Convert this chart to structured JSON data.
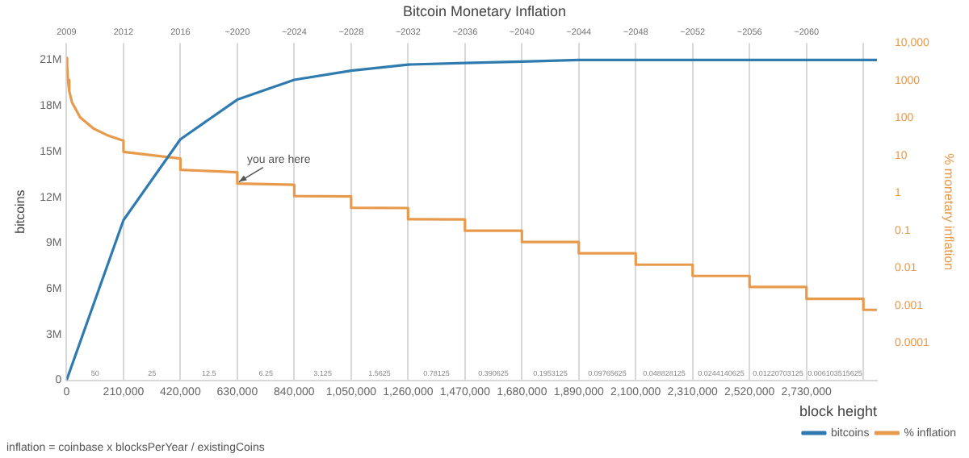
{
  "chart_data": {
    "type": "line",
    "title": "Bitcoin Monetary Inflation",
    "xlabel": "block height",
    "ylabel": "bitcoins",
    "y2label": "% monetary inflation",
    "xlim": [
      0,
      2990000
    ],
    "xticks": [
      0,
      {
        "value": 210000,
        "label": "210,000"
      },
      {
        "value": 420000,
        "label": "420,000"
      },
      {
        "value": 630000,
        "label": "630,000"
      },
      {
        "value": 840000,
        "label": "840,000"
      },
      {
        "value": 1050000,
        "label": "1,050,000"
      },
      {
        "value": 1260000,
        "label": "1,260,000"
      },
      {
        "value": 1470000,
        "label": "1,470,000"
      },
      {
        "value": 1680000,
        "label": "1,680,000"
      },
      {
        "value": 1890000,
        "label": "1,890,000"
      },
      {
        "value": 2100000,
        "label": "2,100,000"
      },
      {
        "value": 2310000,
        "label": "2,310,000"
      },
      {
        "value": 2520000,
        "label": "2,520,000"
      },
      {
        "value": 2730000,
        "label": "2,730,000"
      },
      {
        "value": 2940000,
        "label": null
      }
    ],
    "ylim": [
      0,
      22100000
    ],
    "yticks": [
      {
        "value": 0,
        "label": "0"
      },
      {
        "value": 3000000,
        "label": "3M"
      },
      {
        "value": 6000000,
        "label": "6M"
      },
      {
        "value": 9000000,
        "label": "9M"
      },
      {
        "value": 12000000,
        "label": "12M"
      },
      {
        "value": 15000000,
        "label": "15M"
      },
      {
        "value": 18000000,
        "label": "18M"
      },
      {
        "value": 21000000,
        "label": "21M"
      }
    ],
    "y2lim": [
      1e-05,
      10000
    ],
    "y2ticks": [
      {
        "value": 10000,
        "label": "10,000"
      },
      {
        "value": 1000,
        "label": "1000"
      },
      100,
      10,
      1,
      0.1,
      0.01,
      0.001,
      0.0001
    ],
    "log": "y2",
    "grid": "x",
    "legend": "bottom right",
    "marker": "none",
    "line_style": "solid",
    "series": [
      {
        "name": "bitcoins",
        "color": "#2f7bb0",
        "x": [
          0,
          210000,
          420000,
          630000,
          840000,
          1050000,
          1260000,
          1470000,
          1680000,
          1890000,
          2100000,
          2310000,
          2520000,
          2730000,
          2940000,
          2990000
        ],
        "values": [
          0,
          10500000,
          15800000,
          18400000,
          19700000,
          20300000,
          20700000,
          20800000,
          20900000,
          21000000,
          21000000,
          21000000,
          21000000,
          21000000,
          21000000,
          21000000
        ]
      },
      {
        "name": "% inflation",
        "color": "#e89a4c",
        "axis": "y2",
        "x": [
          1300,
          2000,
          5000,
          10000,
          20000,
          50000,
          100000,
          150000,
          210000,
          210000,
          420000,
          420000,
          630000,
          630000,
          840000,
          840000,
          1050000,
          1050000,
          1260000,
          1260000,
          1470000,
          1470000,
          1680000,
          1680000,
          1890000,
          1890000,
          2100000,
          2100000,
          2310000,
          2310000,
          2520000,
          2520000,
          2730000,
          2730000,
          2940000,
          2940000,
          2990000
        ],
        "values": [
          4040,
          2630,
          1050,
          526,
          263,
          105,
          52.6,
          35,
          25,
          12.5,
          8.34,
          4.17,
          3.58,
          1.79,
          1.67,
          0.834,
          0.807,
          0.404,
          0.397,
          0.199,
          0.197,
          0.0985,
          0.0982,
          0.0491,
          0.049,
          0.0245,
          0.0245,
          0.0122,
          0.0122,
          0.0061,
          0.0061,
          0.0031,
          0.0031,
          0.0015,
          0.0015,
          0.00076,
          0.00076
        ]
      }
    ],
    "annotations": [
      {
        "text": "you are here",
        "x": 630000,
        "y": 12900000
      },
      "2009",
      "2012",
      "2016",
      "~2020",
      "~2024",
      "~2028",
      "~2032",
      "~2036",
      "~2040",
      "~2044",
      "~2048",
      "~2052",
      "~2056",
      "~2060",
      "50",
      "25",
      "12.5",
      "6.25",
      "3.125",
      "1.5625",
      "0.78125",
      "0.390625",
      "0.1953125",
      "0.09765625",
      "0.048828125",
      "0.0244140625",
      "0.01220703125",
      "0.006103515625",
      "inflation = coinbase x blocksPerYear / existingCoins"
    ]
  }
}
